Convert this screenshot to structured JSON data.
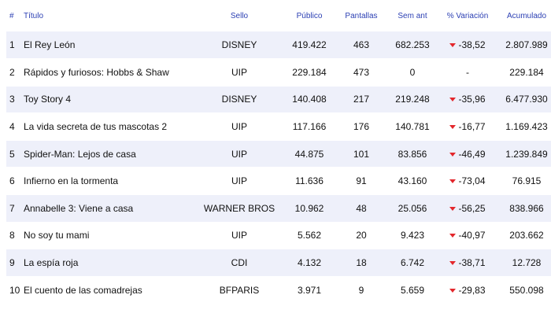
{
  "headers": {
    "rank": "#",
    "title": "Título",
    "label": "Sello",
    "public": "Público",
    "screens": "Pantallas",
    "prev_week": "Sem ant",
    "variation": "% Variación",
    "accumulated": "Acumulado"
  },
  "colors": {
    "header_text": "#2b3fb3",
    "row_stripe": "#eef0fa",
    "down_arrow": "#e3272c"
  },
  "rows": [
    {
      "rank": "1",
      "title": "El Rey León",
      "label": "DISNEY",
      "public": "419.422",
      "screens": "463",
      "prev_week": "682.253",
      "variation": "-38,52",
      "trend": "down-arrow-icon",
      "accumulated": "2.807.989"
    },
    {
      "rank": "2",
      "title": "Rápidos y furiosos: Hobbs & Shaw",
      "label": "UIP",
      "public": "229.184",
      "screens": "473",
      "prev_week": "0",
      "variation": "-",
      "trend": "",
      "accumulated": "229.184"
    },
    {
      "rank": "3",
      "title": "Toy Story 4",
      "label": "DISNEY",
      "public": "140.408",
      "screens": "217",
      "prev_week": "219.248",
      "variation": "-35,96",
      "trend": "down-arrow-icon",
      "accumulated": "6.477.930"
    },
    {
      "rank": "4",
      "title": "La vida secreta de tus mascotas 2",
      "label": "UIP",
      "public": "117.166",
      "screens": "176",
      "prev_week": "140.781",
      "variation": "-16,77",
      "trend": "down-arrow-icon",
      "accumulated": "1.169.423"
    },
    {
      "rank": "5",
      "title": "Spider-Man: Lejos de casa",
      "label": "UIP",
      "public": "44.875",
      "screens": "101",
      "prev_week": "83.856",
      "variation": "-46,49",
      "trend": "down-arrow-icon",
      "accumulated": "1.239.849"
    },
    {
      "rank": "6",
      "title": "Infierno en la tormenta",
      "label": "UIP",
      "public": "11.636",
      "screens": "91",
      "prev_week": "43.160",
      "variation": "-73,04",
      "trend": "down-arrow-icon",
      "accumulated": "76.915"
    },
    {
      "rank": "7",
      "title": "Annabelle 3: Viene a casa",
      "label": "WARNER BROS",
      "public": "10.962",
      "screens": "48",
      "prev_week": "25.056",
      "variation": "-56,25",
      "trend": "down-arrow-icon",
      "accumulated": "838.966"
    },
    {
      "rank": "8",
      "title": "No soy tu mami",
      "label": "UIP",
      "public": "5.562",
      "screens": "20",
      "prev_week": "9.423",
      "variation": "-40,97",
      "trend": "down-arrow-icon",
      "accumulated": "203.662"
    },
    {
      "rank": "9",
      "title": "La espía roja",
      "label": "CDI",
      "public": "4.132",
      "screens": "18",
      "prev_week": "6.742",
      "variation": "-38,71",
      "trend": "down-arrow-icon",
      "accumulated": "12.728"
    },
    {
      "rank": "10",
      "title": "El cuento de las comadrejas",
      "label": "BFPARIS",
      "public": "3.971",
      "screens": "9",
      "prev_week": "5.659",
      "variation": "-29,83",
      "trend": "down-arrow-icon",
      "accumulated": "550.098"
    }
  ]
}
